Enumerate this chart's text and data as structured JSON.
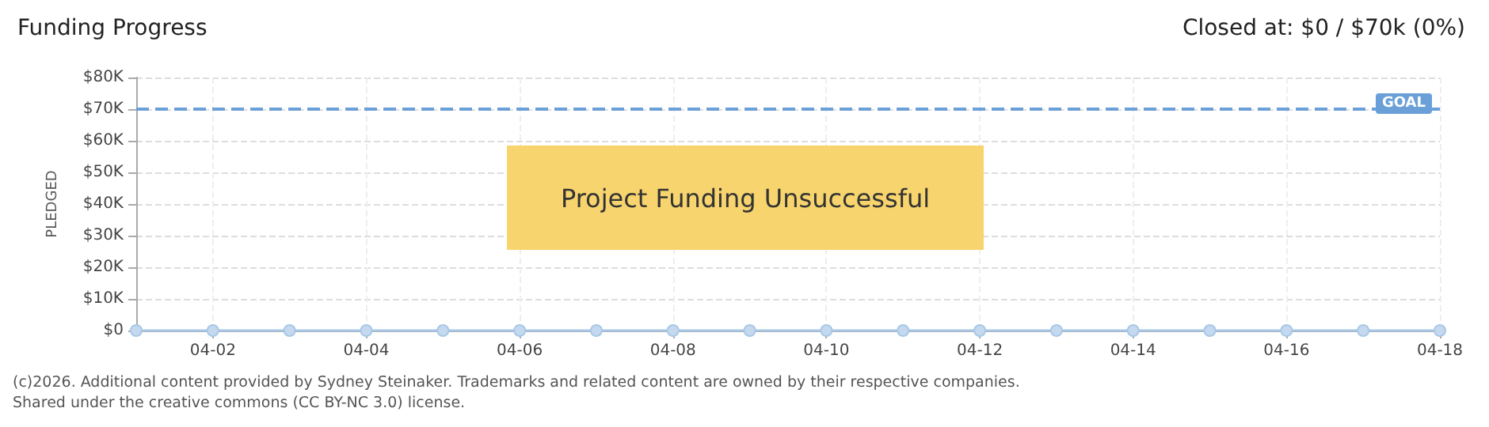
{
  "chart_data": {
    "type": "line",
    "title": "Funding Progress",
    "subtitle": "Closed at: $0 / $70k (0%)",
    "ylabel": "PLEDGED",
    "x": [
      "--04-01",
      "--04-02",
      "--04-03",
      "--04-04",
      "--04-05",
      "--04-06",
      "--04-07",
      "--04-08",
      "--04-09",
      "--04-10",
      "--04-11",
      "--04-12",
      "--04-13",
      "--04-14",
      "--04-15",
      "--04-16",
      "--04-17",
      "--04-18"
    ],
    "series": [
      {
        "color": "#a8c8e8",
        "values": [
          0,
          0,
          0,
          0,
          0,
          0,
          0,
          0,
          0,
          0,
          0,
          0,
          0,
          0,
          0,
          0,
          0,
          0
        ]
      }
    ],
    "xlim": [
      "--04-01",
      "--04-18"
    ],
    "xticks": [
      {
        "value": "--04-02",
        "label": "04-02"
      },
      {
        "value": "--04-04",
        "label": "04-04"
      },
      {
        "value": "--04-06",
        "label": "04-06"
      },
      {
        "value": "--04-08",
        "label": "04-08"
      },
      {
        "value": "--04-10",
        "label": "04-10"
      },
      {
        "value": "--04-12",
        "label": "04-12"
      },
      {
        "value": "--04-14",
        "label": "04-14"
      },
      {
        "value": "--04-16",
        "label": "04-16"
      },
      {
        "value": "--04-18",
        "label": "04-18"
      }
    ],
    "ylim": [
      0,
      80000
    ],
    "yticks": [
      {
        "value": 0,
        "label": "$0"
      },
      {
        "value": 10000,
        "label": "$10K"
      },
      {
        "value": 20000,
        "label": "$20K"
      },
      {
        "value": 30000,
        "label": "$30K"
      },
      {
        "value": 40000,
        "label": "$40K"
      },
      {
        "value": 50000,
        "label": "$50K"
      },
      {
        "value": 60000,
        "label": "$60K"
      },
      {
        "value": 70000,
        "label": "$70K"
      },
      {
        "value": 80000,
        "label": "$80K"
      }
    ],
    "ref_lines": [
      {
        "axis": "y",
        "value": 70000,
        "label": "GOAL",
        "color": "#6a9fd8",
        "line_style": "dashed"
      }
    ],
    "annotations": [
      "Project Funding Unsuccessful",
      "(c)2026. Additional content provided by Sydney Steinaker. Trademarks and related content are owned by their respective companies.",
      "Shared under the creative commons (CC BY-NC 3.0) license."
    ],
    "grid": true,
    "marker": "circle",
    "line_style": "solid"
  }
}
